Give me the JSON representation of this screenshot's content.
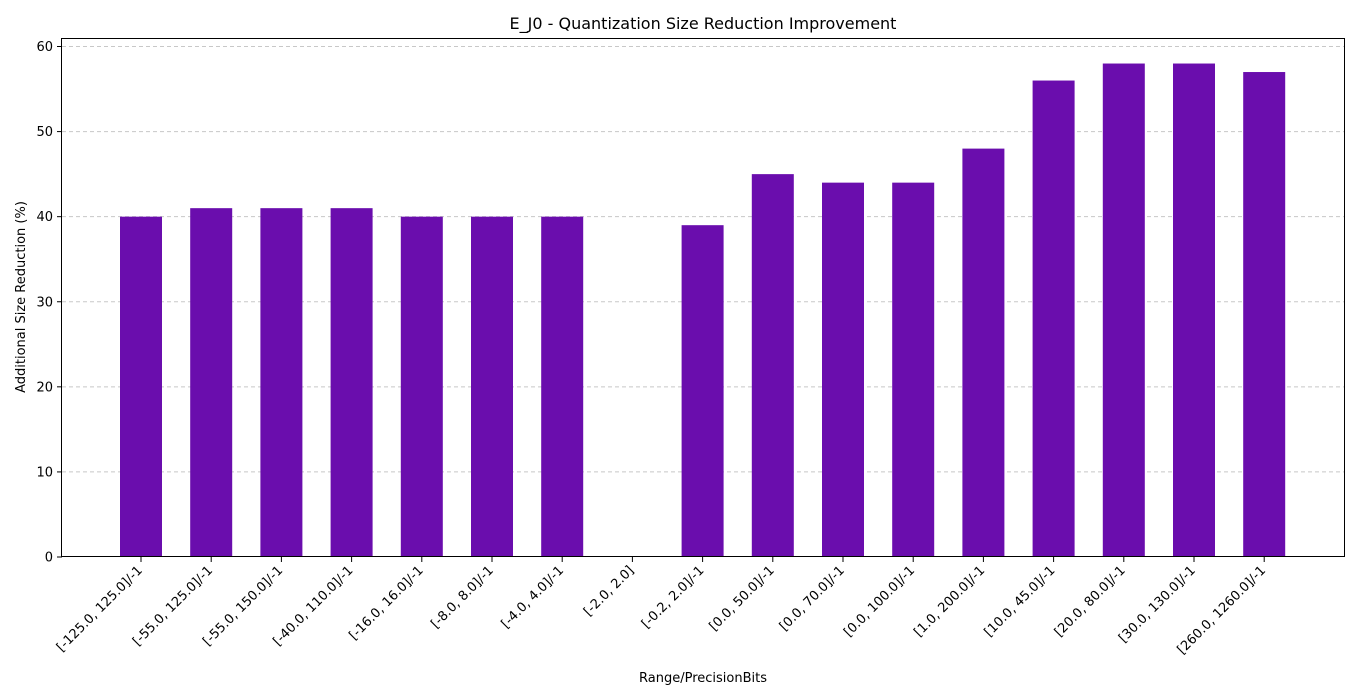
{
  "chart_data": {
    "type": "bar",
    "title": "E_J0 - Quantization Size Reduction Improvement",
    "xlabel": "Range/PrecisionBits",
    "ylabel": "Additional Size Reduction (%)",
    "ylim": [
      0,
      61
    ],
    "yticks": [
      0,
      10,
      20,
      30,
      40,
      50,
      60
    ],
    "grid": "y-dashed",
    "bar_color": "#6a0dad",
    "categories": [
      "[-125.0, 125.0]/-1",
      "[-55.0, 125.0]/-1",
      "[-55.0, 150.0]/-1",
      "[-40.0, 110.0]/-1",
      "[-16.0, 16.0]/-1",
      "[-8.0, 8.0]/-1",
      "[-4.0, 4.0]/-1",
      "[-2.0, 2.0]",
      "[-0.2, 2.0]/-1",
      "[0.0, 50.0]/-1",
      "[0.0, 70.0]/-1",
      "[0.0, 100.0]/-1",
      "[1.0, 200.0]/-1",
      "[10.0, 45.0]/-1",
      "[20.0, 80.0]/-1",
      "[30.0, 130.0]/-1",
      "[260.0, 1260.0]/-1"
    ],
    "values": [
      40,
      41,
      41,
      41,
      40,
      40,
      40,
      0,
      39,
      45,
      44,
      44,
      48,
      56,
      58,
      58,
      57
    ]
  }
}
